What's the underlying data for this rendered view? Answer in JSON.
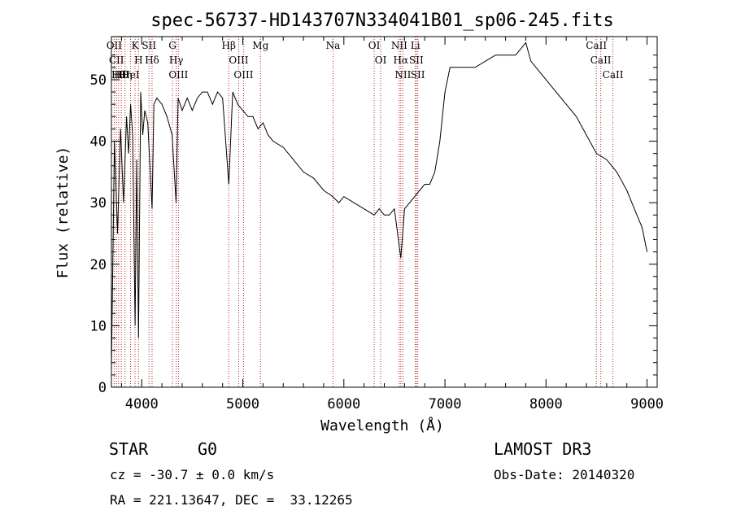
{
  "chart_data": {
    "type": "line",
    "title": "spec-56737-HD143707N334041B01_sp06-245.fits",
    "xlabel": "Wavelength (Å)",
    "ylabel": "Flux (relative)",
    "xlim": [
      3700,
      9100
    ],
    "ylim": [
      0,
      57
    ],
    "xticks": [
      "4000",
      "5000",
      "6000",
      "7000",
      "8000",
      "9000"
    ],
    "yticks": [
      "0",
      "10",
      "20",
      "30",
      "40",
      "50"
    ],
    "grid": false,
    "series": [
      {
        "x": [
          3700,
          3730,
          3760,
          3790,
          3820,
          3850,
          3870,
          3890,
          3910,
          3934,
          3950,
          3968,
          3990,
          4010,
          4030,
          4060,
          4102,
          4120,
          4150,
          4200,
          4250,
          4300,
          4340,
          4360,
          4400,
          4450,
          4500,
          4550,
          4600,
          4650,
          4700,
          4750,
          4800,
          4861,
          4900,
          4950,
          5000,
          5050,
          5100,
          5150,
          5200,
          5250,
          5300,
          5400,
          5500,
          5600,
          5700,
          5800,
          5890,
          5950,
          6000,
          6100,
          6200,
          6300,
          6350,
          6400,
          6450,
          6500,
          6563,
          6600,
          6650,
          6700,
          6750,
          6800,
          6850,
          6900,
          6950,
          7000,
          7050,
          7100,
          7200,
          7300,
          7400,
          7500,
          7600,
          7700,
          7800,
          7850,
          7900,
          8000,
          8100,
          8200,
          8300,
          8400,
          8500,
          8600,
          8700,
          8800,
          8850,
          8900,
          8950,
          9000
        ],
        "y": [
          3,
          40,
          25,
          42,
          30,
          44,
          38,
          46,
          41,
          10,
          37,
          8,
          48,
          41,
          45,
          43,
          29,
          46,
          47,
          46,
          44,
          41,
          30,
          47,
          45,
          47,
          45,
          47,
          48,
          48,
          46,
          48,
          47,
          33,
          48,
          46,
          45,
          44,
          44,
          42,
          43,
          41,
          40,
          39,
          37,
          35,
          34,
          32,
          31,
          30,
          31,
          30,
          29,
          28,
          29,
          28,
          28,
          29,
          21,
          29,
          30,
          31,
          32,
          33,
          33,
          35,
          40,
          48,
          52,
          52,
          52,
          52,
          53,
          54,
          54,
          54,
          56,
          53,
          52,
          50,
          48,
          46,
          44,
          41,
          38,
          37,
          35,
          32,
          30,
          28,
          26,
          22
        ]
      }
    ],
    "lines": [
      {
        "x": 3727,
        "labels": [
          "OII"
        ]
      },
      {
        "x": 3750,
        "labels": [
          "CII"
        ]
      },
      {
        "x": 3771,
        "labels": [
          "Hθ"
        ]
      },
      {
        "x": 3798,
        "labels": [
          "Hθ"
        ]
      },
      {
        "x": 3835,
        "labels": [
          "Hη"
        ]
      },
      {
        "x": 3889,
        "labels": [
          "HeI"
        ]
      },
      {
        "x": 3934,
        "labels": [
          "K"
        ]
      },
      {
        "x": 3968,
        "labels": [
          "H"
        ]
      },
      {
        "x": 4072,
        "labels": [
          "SII"
        ]
      },
      {
        "x": 4102,
        "labels": [
          "Hδ"
        ]
      },
      {
        "x": 4304,
        "labels": [
          "G"
        ]
      },
      {
        "x": 4341,
        "labels": [
          "Hγ"
        ]
      },
      {
        "x": 4363,
        "labels": [
          "OIII"
        ]
      },
      {
        "x": 4861,
        "labels": [
          "Hβ"
        ]
      },
      {
        "x": 4959,
        "labels": [
          "OIII"
        ]
      },
      {
        "x": 5007,
        "labels": [
          "OIII"
        ]
      },
      {
        "x": 5175,
        "labels": [
          "Mg"
        ]
      },
      {
        "x": 5893,
        "labels": [
          "Na"
        ]
      },
      {
        "x": 6300,
        "labels": [
          "OI"
        ]
      },
      {
        "x": 6364,
        "labels": [
          "OI"
        ]
      },
      {
        "x": 6548,
        "labels": [
          "NII"
        ]
      },
      {
        "x": 6563,
        "labels": [
          "Hα"
        ]
      },
      {
        "x": 6584,
        "labels": [
          "NII"
        ]
      },
      {
        "x": 6707,
        "labels": [
          "Li"
        ]
      },
      {
        "x": 6717,
        "labels": [
          "SII"
        ]
      },
      {
        "x": 6731,
        "labels": [
          "SII"
        ]
      },
      {
        "x": 8498,
        "labels": [
          "CaII"
        ]
      },
      {
        "x": 8542,
        "labels": [
          "CaII"
        ]
      },
      {
        "x": 8662,
        "labels": [
          "CaII"
        ]
      }
    ]
  },
  "info": {
    "object_type": "STAR",
    "subclass": "G0",
    "survey": "LAMOST DR3",
    "cz": "cz = -30.7 ± 0.0 km/s",
    "obs_date": "Obs-Date: 20140320",
    "coords": "RA = 221.13647, DEC =  33.12265"
  },
  "colors": {
    "spectrum": "#000000",
    "line_markers": "#b22222",
    "text": "#000000"
  }
}
